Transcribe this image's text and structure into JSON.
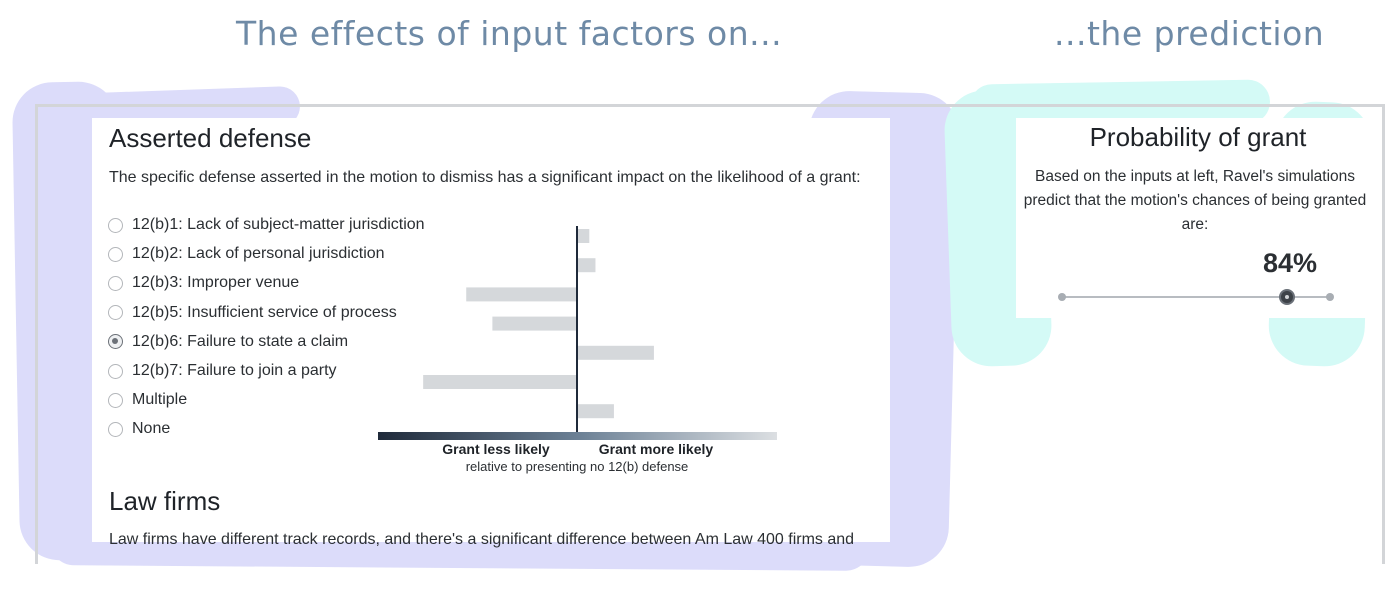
{
  "headlines": {
    "left": "The effects of input factors on...",
    "right": "...the prediction"
  },
  "asserted_defense": {
    "title": "Asserted defense",
    "description": "The specific defense asserted in the motion to dismiss has a significant impact on the likelihood of a grant:",
    "options": [
      {
        "label": "12(b)1: Lack of subject-matter jurisdiction",
        "selected": false
      },
      {
        "label": "12(b)2: Lack of personal jurisdiction",
        "selected": false
      },
      {
        "label": "12(b)3: Improper venue",
        "selected": false
      },
      {
        "label": "12(b)5: Insufficient service of process",
        "selected": false
      },
      {
        "label": "12(b)6: Failure to state a claim",
        "selected": true
      },
      {
        "label": "12(b)7: Failure to join a party",
        "selected": false
      },
      {
        "label": "Multiple",
        "selected": false
      },
      {
        "label": "None",
        "selected": false
      }
    ]
  },
  "chart_data": {
    "type": "bar",
    "orientation": "horizontal",
    "categories": [
      "12(b)1",
      "12(b)2",
      "12(b)3",
      "12(b)5",
      "12(b)6",
      "12(b)7",
      "Multiple",
      "None"
    ],
    "values": [
      0.08,
      0.12,
      -0.72,
      -0.55,
      0.5,
      -1.0,
      0.24,
      0
    ],
    "xlim": [
      -1.3,
      1.3
    ],
    "xlabel_left": "Grant less likely",
    "xlabel_right": "Grant more likely",
    "xlabel_sub": "relative to presenting no 12(b) defense",
    "bar_color": "#d5d8db",
    "axis_color": "#1f2a3a"
  },
  "law_firms": {
    "title": "Law firms",
    "description": "Law firms have different track records, and there's a significant difference between Am Law 400 firms and"
  },
  "prediction": {
    "title": "Probability of grant",
    "description": "Based on the inputs at left, Ravel's simulations predict that the motion's chances of being granted are:",
    "value": "84%",
    "slider_fraction": 0.84
  },
  "colors": {
    "headline": "#6e8aa6",
    "brush_lavender": "#dcdcfa",
    "brush_mint": "#d4faf6"
  }
}
